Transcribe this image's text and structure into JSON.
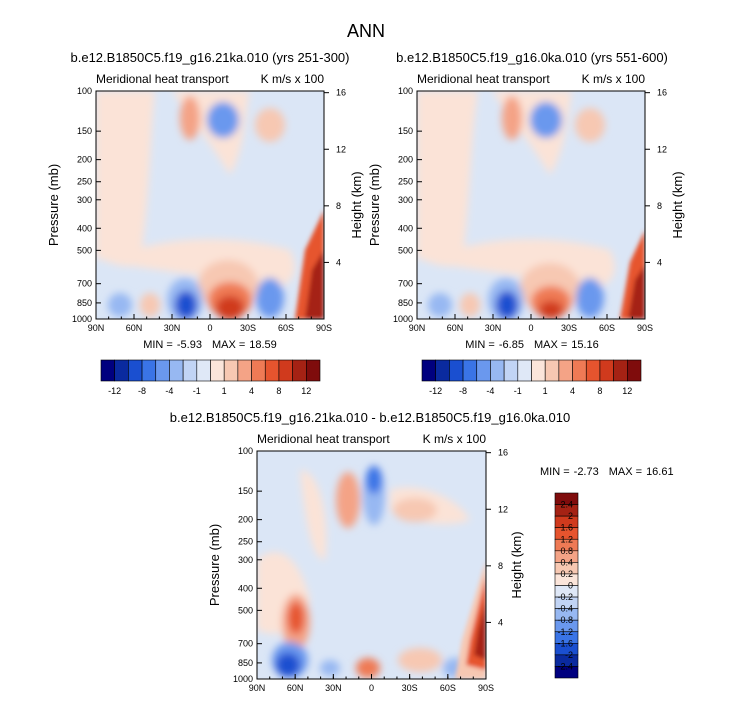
{
  "figure_title": "ANN",
  "chart_data": [
    {
      "type": "heatmap",
      "title": "b.e12.B1850C5.f19_g16.21ka.010 (yrs 251-300)",
      "subtitle_left": "Meridional heat transport",
      "subtitle_right": "K m/s x 100",
      "xlabel": "",
      "ylabel": "Pressure (mb)",
      "ylabel_right": "Height (km)",
      "x_ticks": [
        "90N",
        "60N",
        "30N",
        "0",
        "30S",
        "60S",
        "90S"
      ],
      "y_ticks": [
        "100",
        "150",
        "200",
        "250",
        "300",
        "400",
        "500",
        "700",
        "850",
        "1000"
      ],
      "y_right_ticks": [
        "16",
        "12",
        "8",
        "4"
      ],
      "stats": {
        "min_label": "MIN =",
        "min": "-5.93",
        "max_label": "MAX =",
        "max": "18.59"
      },
      "colorbar": {
        "orientation": "horizontal",
        "labels": [
          "-12",
          "-8",
          "-4",
          "-1",
          "1",
          "4",
          "8",
          "12"
        ]
      }
    },
    {
      "type": "heatmap",
      "title": "b.e12.B1850C5.f19_g16.0ka.010 (yrs 551-600)",
      "subtitle_left": "Meridional heat transport",
      "subtitle_right": "K m/s x 100",
      "xlabel": "",
      "ylabel": "Pressure (mb)",
      "ylabel_right": "Height (km)",
      "x_ticks": [
        "90N",
        "60N",
        "30N",
        "0",
        "30S",
        "60S",
        "90S"
      ],
      "y_ticks": [
        "100",
        "150",
        "200",
        "250",
        "300",
        "400",
        "500",
        "700",
        "850",
        "1000"
      ],
      "y_right_ticks": [
        "16",
        "12",
        "8",
        "4"
      ],
      "stats": {
        "min_label": "MIN =",
        "min": "-6.85",
        "max_label": "MAX =",
        "max": "15.16"
      },
      "colorbar": {
        "orientation": "horizontal",
        "labels": [
          "-12",
          "-8",
          "-4",
          "-1",
          "1",
          "4",
          "8",
          "12"
        ]
      }
    },
    {
      "type": "heatmap",
      "title": "b.e12.B1850C5.f19_g16.21ka.010 - b.e12.B1850C5.f19_g16.0ka.010",
      "subtitle_left": "Meridional heat transport",
      "subtitle_right": "K m/s x 100",
      "xlabel": "",
      "ylabel": "Pressure (mb)",
      "ylabel_right": "Height (km)",
      "x_ticks": [
        "90N",
        "60N",
        "30N",
        "0",
        "30S",
        "60S",
        "90S"
      ],
      "y_ticks": [
        "100",
        "150",
        "200",
        "250",
        "300",
        "400",
        "500",
        "700",
        "850",
        "1000"
      ],
      "y_right_ticks": [
        "16",
        "12",
        "8",
        "4"
      ],
      "stats": {
        "min_label": "MIN =",
        "min": "-2.73",
        "max_label": "MAX =",
        "max": "16.61"
      },
      "colorbar": {
        "orientation": "vertical",
        "labels": [
          "2.4",
          "2",
          "1.6",
          "1.2",
          "0.8",
          "0.4",
          "0.2",
          "0",
          "-0.2",
          "-0.4",
          "-0.8",
          "-1.2",
          "-1.6",
          "-2",
          "-2.4"
        ]
      }
    }
  ],
  "colors": {
    "div_scale": [
      "#00007f",
      "#0a2a9f",
      "#1a4fd0",
      "#3a74e6",
      "#6a98ee",
      "#97b8f2",
      "#c1d4f5",
      "#dfe8f7",
      "#fbe5da",
      "#f7c8b2",
      "#f4a386",
      "#ef7a55",
      "#e6542e",
      "#d03a1d",
      "#a52214",
      "#7f0c0c"
    ],
    "bar_scale": [
      "#00007f",
      "#0a2a9f",
      "#1a4fd0",
      "#3a74e6",
      "#6a98ee",
      "#97b8f2",
      "#c1d4f5",
      "#dfe8f7",
      "#fbe5da",
      "#f7c8b2",
      "#f4a386",
      "#ef7a55",
      "#e6542e",
      "#d03a1d",
      "#a52214",
      "#7f0c0c"
    ],
    "background_field_blue": "#dbe6f6",
    "background_field_red": "#fbe3d7"
  }
}
